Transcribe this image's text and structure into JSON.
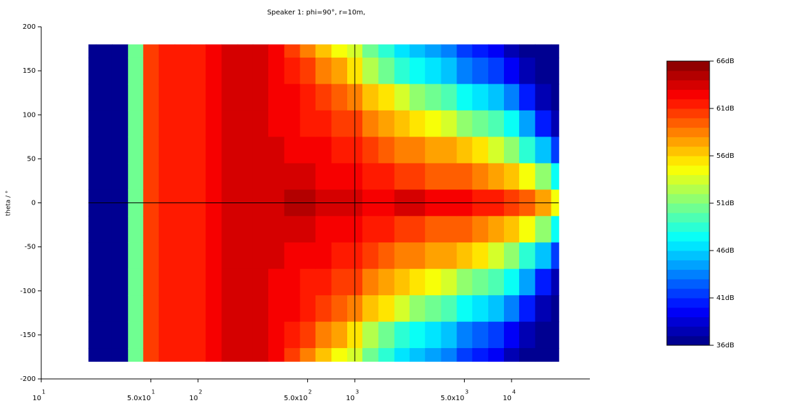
{
  "chart_data": {
    "type": "heatmap",
    "title": "Speaker 1: phi=90°, r=10m,",
    "y_label": "theta / °",
    "x": [
      20,
      25,
      32,
      40,
      50,
      63,
      80,
      100,
      125,
      160,
      200,
      250,
      315,
      400,
      500,
      630,
      800,
      1000,
      1250,
      1600,
      2000,
      2500,
      3150,
      4000,
      5000,
      6300,
      8000,
      10000,
      12500,
      16000,
      20000
    ],
    "y": [
      180,
      150,
      120,
      90,
      60,
      30,
      0,
      -30,
      -60,
      -90,
      -120,
      -150,
      -180
    ],
    "z": [
      [
        36,
        36,
        36,
        36,
        36,
        36,
        36,
        36,
        36,
        36,
        36,
        36,
        36
      ],
      [
        36,
        36,
        36,
        36,
        36,
        36,
        36,
        36,
        36,
        36,
        36,
        36,
        36
      ],
      [
        36,
        36,
        36,
        36,
        36,
        36,
        36,
        36,
        36,
        36,
        36,
        36,
        36
      ],
      [
        50,
        50,
        50,
        50,
        50,
        50,
        50,
        50,
        50,
        50,
        50,
        50,
        50
      ],
      [
        60,
        60,
        60,
        60,
        60,
        60,
        60,
        60,
        60,
        60,
        60,
        60,
        60
      ],
      [
        61,
        61,
        61,
        61,
        61,
        61,
        61,
        61,
        61,
        61,
        61,
        61,
        61
      ],
      [
        61,
        61,
        61,
        61,
        61,
        61,
        61,
        61,
        61,
        61,
        61,
        61,
        61
      ],
      [
        61,
        61,
        61,
        61,
        61,
        61,
        61,
        61,
        61,
        61,
        61,
        61,
        61
      ],
      [
        62,
        62,
        62,
        62,
        62,
        62,
        62,
        62,
        62,
        62,
        62,
        62,
        62
      ],
      [
        63,
        63,
        63,
        63,
        63,
        63,
        63,
        63,
        63,
        63,
        63,
        63,
        63
      ],
      [
        63,
        63,
        63,
        63,
        63,
        63,
        63,
        63,
        63,
        63,
        63,
        63,
        63
      ],
      [
        63,
        63,
        63,
        63,
        63,
        63,
        63,
        63,
        63,
        63,
        63,
        63,
        63
      ],
      [
        62,
        62,
        62,
        62,
        63,
        63,
        63,
        63,
        63,
        62,
        62,
        62,
        62
      ],
      [
        60,
        61,
        62,
        62,
        62,
        63,
        64,
        63,
        62,
        62,
        62,
        61,
        60
      ],
      [
        58,
        60,
        61,
        61,
        62,
        63,
        64,
        63,
        62,
        61,
        61,
        60,
        58
      ],
      [
        56,
        58,
        60,
        61,
        62,
        62,
        63,
        62,
        62,
        61,
        60,
        58,
        56
      ],
      [
        54,
        57,
        59,
        60,
        61,
        62,
        63,
        62,
        61,
        60,
        59,
        57,
        54
      ],
      [
        53,
        55,
        58,
        60,
        61,
        62,
        63,
        62,
        61,
        60,
        58,
        55,
        53
      ],
      [
        50,
        52,
        56,
        58,
        60,
        61,
        62,
        61,
        60,
        58,
        56,
        52,
        50
      ],
      [
        48,
        50,
        55,
        57,
        59,
        61,
        62,
        61,
        59,
        57,
        55,
        50,
        48
      ],
      [
        46,
        48,
        53,
        56,
        58,
        60,
        63,
        60,
        58,
        56,
        53,
        48,
        46
      ],
      [
        45,
        47,
        51,
        55,
        58,
        60,
        63,
        60,
        58,
        55,
        51,
        47,
        45
      ],
      [
        44,
        46,
        50,
        54,
        57,
        59,
        62,
        59,
        57,
        54,
        50,
        46,
        44
      ],
      [
        43,
        45,
        49,
        53,
        57,
        59,
        62,
        59,
        57,
        53,
        49,
        45,
        43
      ],
      [
        41,
        43,
        47,
        51,
        56,
        59,
        62,
        59,
        56,
        51,
        47,
        43,
        41
      ],
      [
        40,
        42,
        46,
        50,
        55,
        58,
        61,
        58,
        55,
        50,
        46,
        42,
        40
      ],
      [
        39,
        41,
        45,
        49,
        53,
        57,
        61,
        57,
        53,
        49,
        45,
        41,
        39
      ],
      [
        37,
        39,
        43,
        47,
        51,
        56,
        60,
        56,
        51,
        47,
        43,
        39,
        37
      ],
      [
        36,
        37,
        40,
        44,
        48,
        54,
        59,
        54,
        48,
        44,
        40,
        37,
        36
      ],
      [
        36,
        36,
        37,
        40,
        45,
        51,
        57,
        51,
        45,
        40,
        37,
        36,
        36
      ],
      [
        36,
        36,
        36,
        37,
        41,
        47,
        54,
        47,
        41,
        37,
        36,
        36,
        36
      ]
    ],
    "x_log": true,
    "xlim": [
      10,
      31600
    ],
    "ylim": [
      -200,
      200
    ],
    "xticks": [
      {
        "value": 10,
        "label": "10",
        "exponent": "1"
      },
      {
        "value": 50,
        "label": "5.0x10",
        "exponent": "1"
      },
      {
        "value": 100,
        "label": "10",
        "exponent": "2"
      },
      {
        "value": 500,
        "label": "5.0x10",
        "exponent": "2"
      },
      {
        "value": 1000,
        "label": "10",
        "exponent": "3"
      },
      {
        "value": 5000,
        "label": "5.0x10",
        "exponent": "3"
      },
      {
        "value": 10000,
        "label": "10",
        "exponent": "4"
      }
    ],
    "yticks": [
      -200,
      -150,
      -100,
      -50,
      0,
      50,
      100,
      150,
      200
    ],
    "crosshair": {
      "x": 1000,
      "y": 0
    },
    "colormap": "jet",
    "clim": [
      36,
      66
    ],
    "levels": 30,
    "colorbar_ticks": [
      {
        "value": 36,
        "label": "36dB"
      },
      {
        "value": 41,
        "label": "41dB"
      },
      {
        "value": 46,
        "label": "46dB"
      },
      {
        "value": 51,
        "label": "51dB"
      },
      {
        "value": 56,
        "label": "56dB"
      },
      {
        "value": 61,
        "label": "61dB"
      },
      {
        "value": 66,
        "label": "66dB"
      }
    ]
  }
}
